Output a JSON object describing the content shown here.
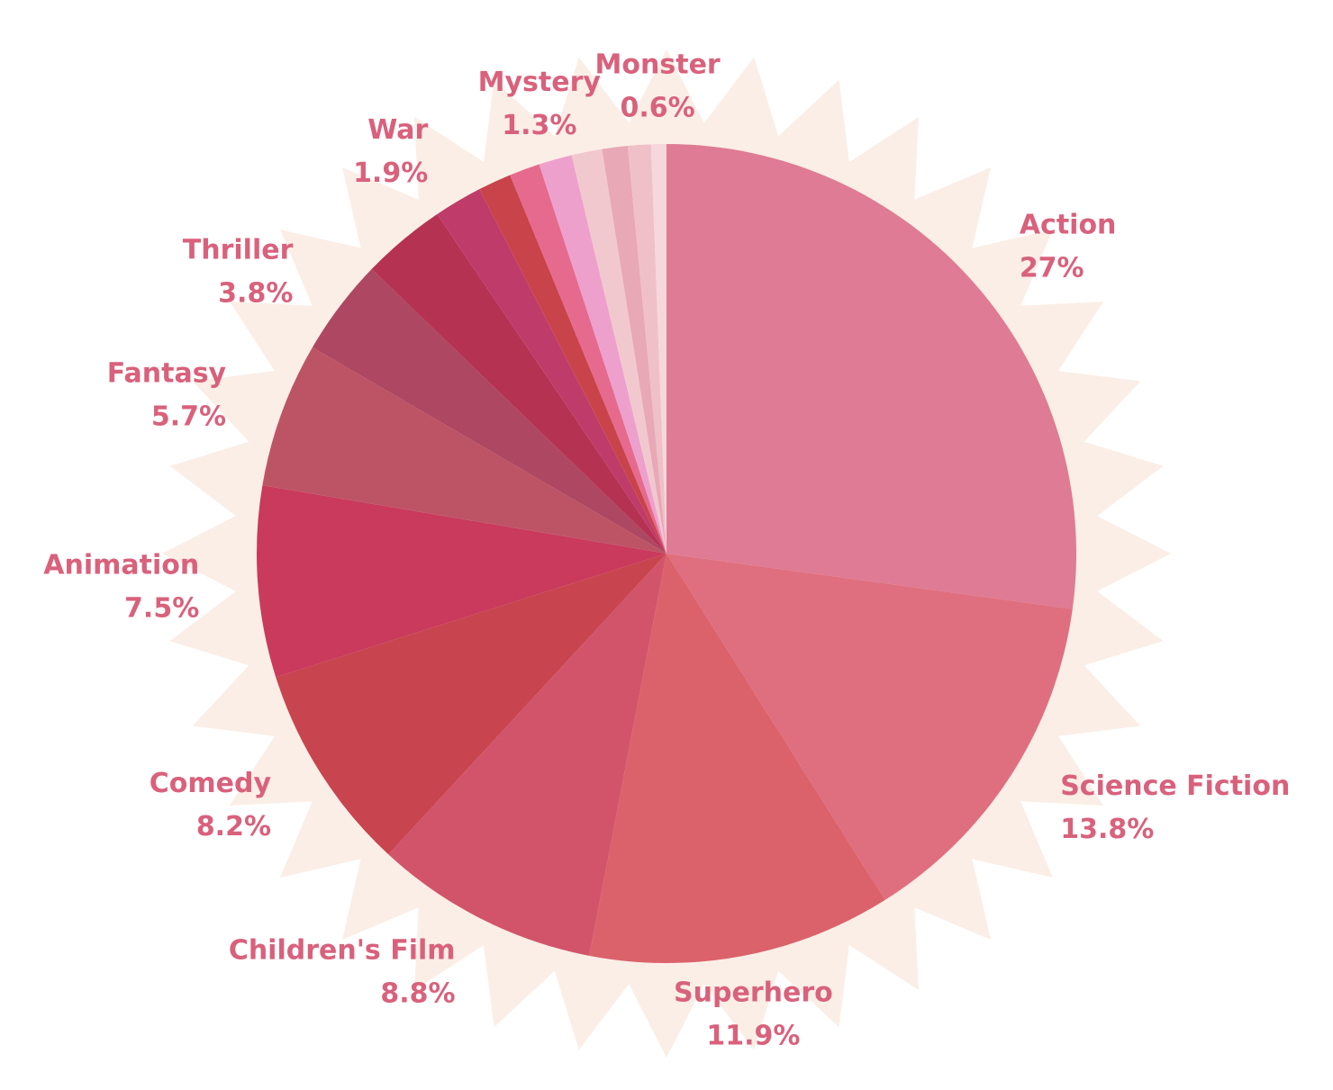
{
  "chart_data": {
    "type": "pie",
    "categories": [
      "Action",
      "Science Fiction",
      "Superhero",
      "Children's Film",
      "Comedy",
      "Animation",
      "Fantasy",
      "Thriller",
      null,
      "War",
      null,
      null,
      "Mystery",
      null,
      null,
      null,
      "Monster"
    ],
    "values": [
      27,
      13.8,
      11.9,
      8.8,
      8.2,
      7.5,
      5.7,
      3.8,
      3.3,
      1.9,
      1.3,
      1.2,
      1.3,
      1.2,
      1.0,
      0.9,
      0.6
    ],
    "value_labels": [
      "27%",
      "13.8%",
      "11.9%",
      "8.8%",
      "8.2%",
      "7.5%",
      "5.7%",
      "3.8%",
      null,
      "1.9%",
      null,
      null,
      "1.3%",
      null,
      null,
      null,
      "0.6%"
    ],
    "colors": [
      "#df7b94",
      "#df6f7f",
      "#db626b",
      "#d2546a",
      "#c8444f",
      "#c93a5c",
      "#bd5466",
      "#ad4762",
      "#b53253",
      "#bf3c6a",
      "#c9434b",
      "#e56a8e",
      "#eea0cc",
      "#f2c8cf",
      "#e8a8b6",
      "#f0c0c8",
      "#f6d7dc"
    ]
  }
}
